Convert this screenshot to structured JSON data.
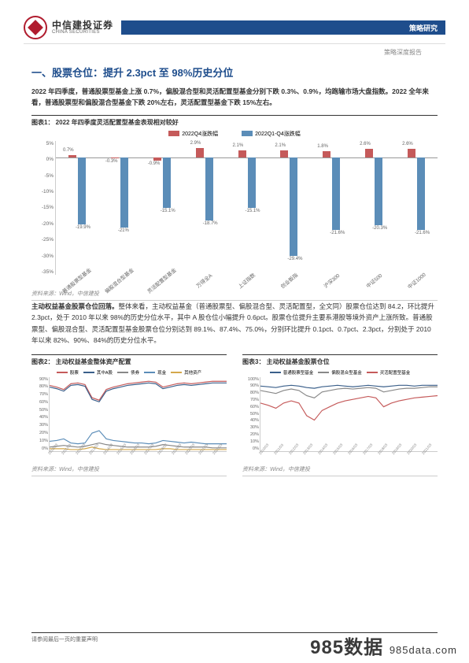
{
  "header": {
    "logo_cn": "中信建投证券",
    "logo_en": "CHINA SECURITIES",
    "bar_text": "策略研究",
    "sub_text": "策略深度报告"
  },
  "section_title": "一、股票仓位：提升 2.3pct 至 98%历史分位",
  "para1": "2022 年四季度，普通股票型基金上涨 0.7%，偏股混合型和灵活配置型基金分别下跌 0.3%、0.9%，均跑输市场大盘指数。2022 全年来看，普通股票型和偏股混合型基金下跌 20%左右，灵活配置型基金下跌 15%左右。",
  "chart1": {
    "label": "图表1：  2022 年四季度灵活配置型基金表现相对较好",
    "legend": [
      "2022Q4涨跌幅",
      "2022Q1-Q4涨跌幅"
    ],
    "colors": [
      "#c55a5a",
      "#5b8db8"
    ],
    "y_ticks": [
      "5%",
      "0%",
      "-5%",
      "-10%",
      "-15%",
      "-20%",
      "-25%",
      "-30%",
      "-35%"
    ],
    "categories": [
      "普通股票型基金",
      "偏股混合型基金",
      "灵活配置型基金",
      "万得全A",
      "上证指数",
      "创业板指",
      "沪深300",
      "中证500",
      "中证1000"
    ],
    "q4": [
      0.7,
      -0.3,
      -0.9,
      2.9,
      2.1,
      2.1,
      1.8,
      2.6,
      2.6
    ],
    "full": [
      -19.9,
      -21.0,
      -15.1,
      -18.7,
      -15.1,
      -29.4,
      -21.6,
      -20.3,
      -21.6
    ],
    "source": "资料来源：Wind，中信建投"
  },
  "para2_lead": "主动权益基金股票仓位回落。",
  "para2": "整体来看，主动权益基金（普通股票型、偏股混合型、灵活配置型，全文同）股票仓位达到 84.2，环比提升 2.3pct，处于 2010 年以来 98%的历史分位水平，其中 A 股仓位小幅提升 0.6pct。股票仓位提升主要系港股等境外资产上涨所致。普通股票型、偏股混合型、灵活配置型基金股票仓位分别达到 89.1%、87.4%、75.0%，分别环比提升 0.1pct、0.7pct、2.3pct，分别处于 2010 年以来 82%、90%、84%的历史分位水平。",
  "chart2": {
    "label": "图表2：  主动权益基金整体资产配置",
    "legend": [
      "股票",
      "其中A股",
      "债券",
      "现金",
      "其他资产"
    ],
    "colors": [
      "#c55a5a",
      "#3a5f8a",
      "#888888",
      "#5b8db8",
      "#d4a84b"
    ],
    "y_ticks": [
      "90%",
      "80%",
      "70%",
      "60%",
      "50%",
      "40%",
      "30%",
      "20%",
      "10%",
      "0%"
    ],
    "x_labels": [
      "2010/03",
      "2011/03",
      "2012/03",
      "2013/03",
      "2014/03",
      "2015/03",
      "2016/03",
      "2017/03",
      "2018/03",
      "2019/03",
      "2020/03",
      "2021/03",
      "2022/03"
    ],
    "source": "资料来源：Wind，中信建投"
  },
  "chart3": {
    "label": "图表3：  主动权益基金股票仓位",
    "legend": [
      "普通股票型基金",
      "偏股混合型基金",
      "灵活配置型基金"
    ],
    "colors": [
      "#3a5f8a",
      "#888888",
      "#c55a5a"
    ],
    "y_ticks": [
      "100%",
      "90%",
      "80%",
      "70%",
      "60%",
      "50%",
      "40%",
      "30%",
      "20%",
      "10%",
      "0%"
    ],
    "x_labels": [
      "2010/03",
      "2011/03",
      "2012/03",
      "2013/03",
      "2014/03",
      "2015/03",
      "2016/03",
      "2017/03",
      "2018/03",
      "2019/03",
      "2020/03",
      "2021/03"
    ],
    "source": "资料来源：Wind，中信建投"
  },
  "footer": "请参阅最后一页的重要声明",
  "watermark": "985数据",
  "watermark_sub": "985data.com"
}
